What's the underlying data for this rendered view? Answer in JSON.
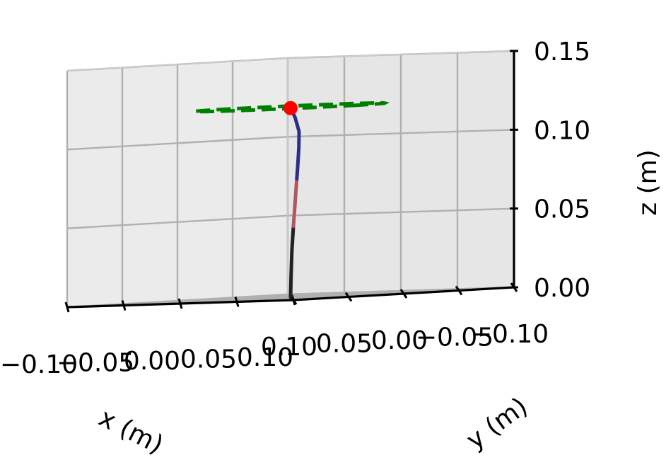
{
  "chart_data": {
    "type": "line",
    "projection": "3d",
    "xlabel": "x (m)",
    "ylabel": "y (m)",
    "zlabel": "z (m)",
    "xlim": [
      -0.1,
      0.1
    ],
    "ylim": [
      -0.1,
      0.1
    ],
    "zlim": [
      0.0,
      0.15
    ],
    "grid": true,
    "x_ticks": [
      "0.10",
      "0.05",
      "0.00",
      "−0.05",
      "−0.10"
    ],
    "y_ticks": [
      "−0.10",
      "−0.05",
      "0.00",
      "0.05",
      "0.10"
    ],
    "z_ticks": [
      "0.00",
      "0.05",
      "0.10",
      "0.15"
    ],
    "circle": {
      "center": [
        -0.03,
        -0.03,
        0.12
      ],
      "radius": 0.06,
      "color": "#008000",
      "style": "dashed"
    },
    "endpoint": {
      "x": 0.0,
      "y": 0.0,
      "z": 0.12,
      "color": "#ff0000"
    },
    "segments": [
      {
        "color": "#222222",
        "points": [
          [
            0.0,
            0.0,
            0.0
          ],
          [
            0.0005,
            0.0,
            0.015
          ],
          [
            0.0012,
            0.0,
            0.03
          ],
          [
            0.0025,
            0.0,
            0.045
          ]
        ]
      },
      {
        "color": "#b0575f",
        "points": [
          [
            0.0025,
            0.0,
            0.045
          ],
          [
            0.0035,
            0.0,
            0.055
          ],
          [
            0.0045,
            0.0,
            0.065
          ],
          [
            0.0055,
            0.0,
            0.075
          ]
        ]
      },
      {
        "color": "#2e2e8a",
        "points": [
          [
            0.0055,
            0.0,
            0.075
          ],
          [
            0.0065,
            0.0,
            0.085
          ],
          [
            0.0073,
            0.0,
            0.095
          ],
          [
            0.0075,
            0.0,
            0.105
          ],
          [
            0.004,
            0.0,
            0.114
          ],
          [
            0.0,
            0.0,
            0.12
          ]
        ]
      }
    ]
  }
}
